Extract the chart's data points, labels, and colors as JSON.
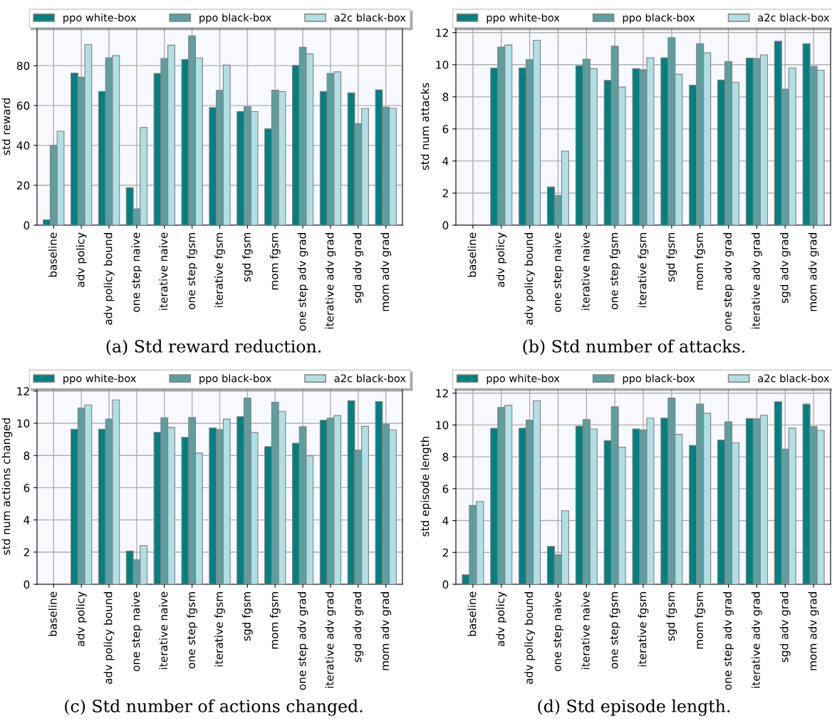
{
  "chart_data": [
    {
      "type": "bar",
      "ylabel": "std reward",
      "annotations": [
        "(a) Std reward reduction."
      ],
      "categories": [
        "baseline",
        "adv policy",
        "adv policy bound",
        "one step naive",
        "iterative naive",
        "one step fgsm",
        "iterative fgsm",
        "sgd fgsm",
        "mom fgsm",
        "one step adv grad",
        "iterative adv grad",
        "sgd adv grad",
        "mom adv grad"
      ],
      "series": [
        {
          "name": "ppo white-box",
          "color": "#008080",
          "values": [
            2.7,
            76.3,
            67.1,
            18.8,
            76.1,
            83.1,
            59.0,
            57.0,
            48.3,
            80.1,
            67.1,
            66.4,
            67.9
          ]
        },
        {
          "name": "ppo black-box",
          "color": "#5f9ea0",
          "values": [
            40.0,
            74.2,
            84.0,
            8.2,
            83.6,
            95.0,
            67.6,
            59.4,
            67.7,
            89.2,
            76.1,
            50.9,
            59.2
          ]
        },
        {
          "name": "a2c black-box",
          "color": "#b0e0e6",
          "values": [
            47.2,
            90.6,
            85.0,
            49.0,
            90.3,
            83.9,
            80.3,
            57.0,
            67.0,
            85.9,
            76.9,
            58.5,
            58.6
          ]
        }
      ],
      "ylim": [
        0,
        99
      ],
      "yticks": [
        0,
        20,
        40,
        60,
        80
      ],
      "grid": true,
      "legend": "top"
    },
    {
      "type": "bar",
      "ylabel": "std num attacks",
      "annotations": [
        "(b) Std number of attacks."
      ],
      "categories": [
        "baseline",
        "adv policy",
        "adv policy bound",
        "one step naive",
        "iterative naive",
        "one step fgsm",
        "iterative fgsm",
        "sgd fgsm",
        "mom fgsm",
        "one step adv grad",
        "iterative adv grad",
        "sgd adv grad",
        "mom adv grad"
      ],
      "series": [
        {
          "name": "ppo white-box",
          "color": "#008080",
          "values": [
            null,
            9.79,
            9.8,
            2.38,
            9.93,
            9.02,
            9.75,
            10.43,
            8.72,
            9.05,
            10.41,
            11.46,
            11.31
          ]
        },
        {
          "name": "ppo black-box",
          "color": "#5f9ea0",
          "values": [
            null,
            11.1,
            10.31,
            1.85,
            10.34,
            11.15,
            9.69,
            11.69,
            11.31,
            10.2,
            10.39,
            8.48,
            9.9
          ]
        },
        {
          "name": "a2c black-box",
          "color": "#b0e0e6",
          "values": [
            null,
            11.23,
            11.52,
            4.62,
            9.75,
            8.61,
            10.43,
            9.41,
            10.74,
            8.89,
            10.61,
            9.8,
            9.66
          ]
        }
      ],
      "ylim": [
        0,
        12.3
      ],
      "yticks": [
        0,
        2,
        4,
        6,
        8,
        10,
        12
      ],
      "grid": true,
      "legend": "top"
    },
    {
      "type": "bar",
      "ylabel": "std num actions changed",
      "annotations": [
        "(c) Std number of actions changed."
      ],
      "categories": [
        "baseline",
        "adv policy",
        "adv policy bound",
        "one step naive",
        "iterative naive",
        "one step fgsm",
        "iterative fgsm",
        "sgd fgsm",
        "mom fgsm",
        "one step adv grad",
        "iterative adv grad",
        "sgd adv grad",
        "mom adv grad"
      ],
      "series": [
        {
          "name": "ppo white-box",
          "color": "#008080",
          "values": [
            null,
            9.63,
            9.63,
            2.07,
            9.44,
            9.13,
            9.71,
            10.41,
            8.55,
            8.76,
            10.19,
            11.4,
            11.35
          ]
        },
        {
          "name": "ppo black-box",
          "color": "#5f9ea0",
          "values": [
            null,
            10.95,
            10.27,
            1.54,
            10.34,
            10.36,
            9.61,
            11.57,
            11.3,
            9.79,
            10.32,
            8.33,
            9.96
          ]
        },
        {
          "name": "a2c black-box",
          "color": "#b0e0e6",
          "values": [
            null,
            11.14,
            11.45,
            2.41,
            9.74,
            8.15,
            10.26,
            9.43,
            10.74,
            7.98,
            10.49,
            9.81,
            9.59
          ]
        }
      ],
      "ylim": [
        0,
        12.17
      ],
      "yticks": [
        0,
        2,
        4,
        6,
        8,
        10,
        12
      ],
      "grid": true,
      "legend": "top"
    },
    {
      "type": "bar",
      "ylabel": "std episode length",
      "annotations": [
        "(d) Std episode length."
      ],
      "categories": [
        "baseline",
        "adv policy",
        "adv policy bound",
        "one step naive",
        "iterative naive",
        "one step fgsm",
        "iterative fgsm",
        "sgd fgsm",
        "mom fgsm",
        "one step adv grad",
        "iterative adv grad",
        "sgd adv grad",
        "mom adv grad"
      ],
      "series": [
        {
          "name": "ppo white-box",
          "color": "#008080",
          "values": [
            0.6,
            9.79,
            9.8,
            2.38,
            9.93,
            9.02,
            9.75,
            10.43,
            8.72,
            9.05,
            10.41,
            11.46,
            11.31
          ]
        },
        {
          "name": "ppo black-box",
          "color": "#5f9ea0",
          "values": [
            4.95,
            11.1,
            10.31,
            1.85,
            10.34,
            11.15,
            9.69,
            11.69,
            11.31,
            10.2,
            10.39,
            8.48,
            9.9
          ]
        },
        {
          "name": "a2c black-box",
          "color": "#b0e0e6",
          "values": [
            5.2,
            11.23,
            11.52,
            4.62,
            9.75,
            8.61,
            10.43,
            9.41,
            10.74,
            8.89,
            10.61,
            9.8,
            9.66
          ]
        }
      ],
      "ylim": [
        0,
        12.3
      ],
      "yticks": [
        0,
        2,
        4,
        6,
        8,
        10,
        12
      ],
      "grid": true,
      "legend": "top"
    }
  ]
}
